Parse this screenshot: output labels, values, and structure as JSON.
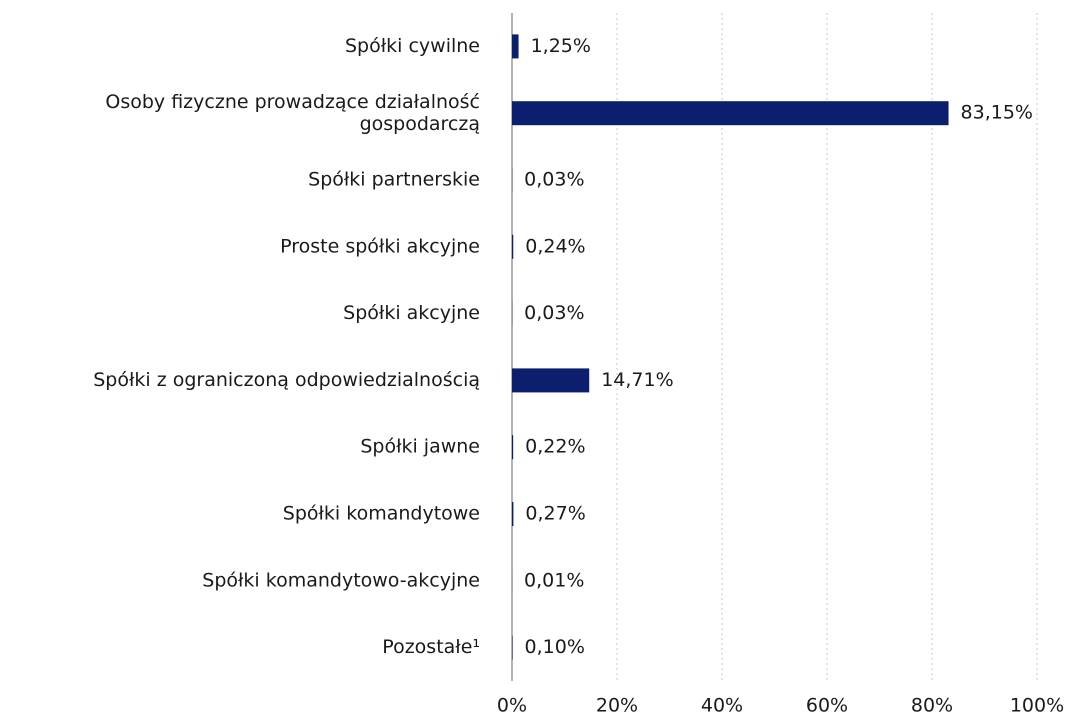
{
  "chart_data": {
    "type": "bar",
    "orientation": "horizontal",
    "categories": [
      "Spółki cywilne",
      "Osoby fizyczne prowadzące działalność\ngospodarczą",
      "Spółki partnerskie",
      "Proste spółki akcyjne",
      "Spółki akcyjne",
      "Spółki z ograniczoną odpowiedzialnością",
      "Spółki jawne",
      "Spółki komandytowe",
      "Spółki komandytowo-akcyjne",
      "Pozostałe¹"
    ],
    "values": [
      1.25,
      83.15,
      0.03,
      0.24,
      0.03,
      14.71,
      0.22,
      0.27,
      0.01,
      0.1
    ],
    "value_labels": [
      "1,25%",
      "83,15%",
      "0,03%",
      "0,24%",
      "0,03%",
      "14,71%",
      "0,22%",
      "0,27%",
      "0,01%",
      "0,10%"
    ],
    "color": "#0b1f6e",
    "xlim": [
      0,
      100
    ],
    "xticks": [
      {
        "value": 0,
        "label": "0%"
      },
      {
        "value": 20,
        "label": "20%"
      },
      {
        "value": 40,
        "label": "40%"
      },
      {
        "value": 60,
        "label": "60%"
      },
      {
        "value": 80,
        "label": "80%"
      },
      {
        "value": 100,
        "label": "100%"
      }
    ],
    "grid": true
  }
}
